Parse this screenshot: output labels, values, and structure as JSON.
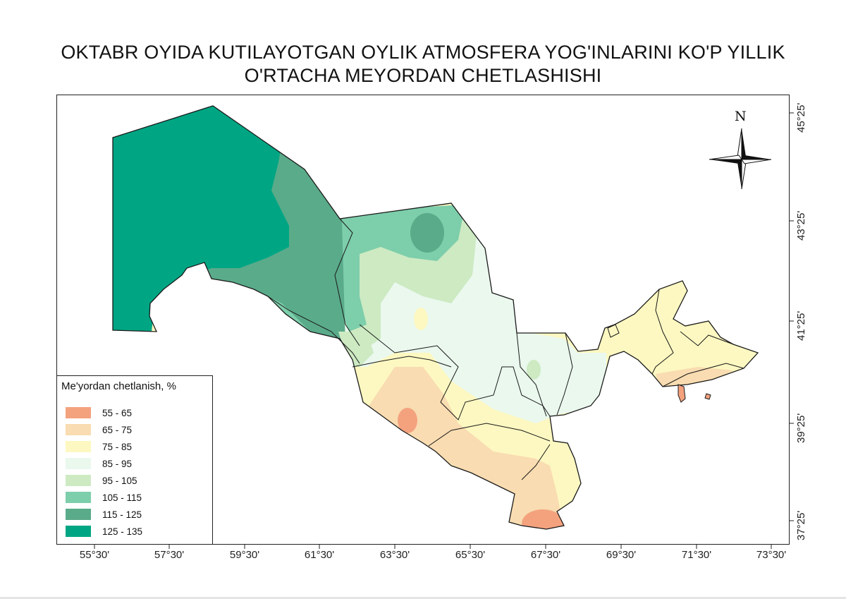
{
  "title_lines": [
    "OKTABR OYIDA KUTILAYOTGAN OYLIK ATMOSFERA YOG'INLARINI KO'P YILLIK",
    "O'RTACHA MEYORDAN CHETLASHISHI"
  ],
  "legend": {
    "title": "Me'yordan chetlanish, %",
    "items": [
      {
        "label": "55 - 65",
        "color": "#f4a27e"
      },
      {
        "label": "65 - 75",
        "color": "#f9dcb1"
      },
      {
        "label": "75 - 85",
        "color": "#fdf8c1"
      },
      {
        "label": "85 - 95",
        "color": "#eaf8ee"
      },
      {
        "label": "95 - 105",
        "color": "#cdeac2"
      },
      {
        "label": "105 - 115",
        "color": "#7dceab"
      },
      {
        "label": "115 - 125",
        "color": "#5aab8a"
      },
      {
        "label": "125 - 135",
        "color": "#00a683"
      }
    ]
  },
  "longitude_labels": [
    "55°30'",
    "57°30'",
    "59°30'",
    "61°30'",
    "63°30'",
    "65°30'",
    "67°30'",
    "69°30'",
    "71°30'",
    "73°30'"
  ],
  "latitude_labels": [
    "45°25'",
    "43°25'",
    "41°25'",
    "39°25'",
    "37°25'"
  ],
  "north_label": "N"
}
